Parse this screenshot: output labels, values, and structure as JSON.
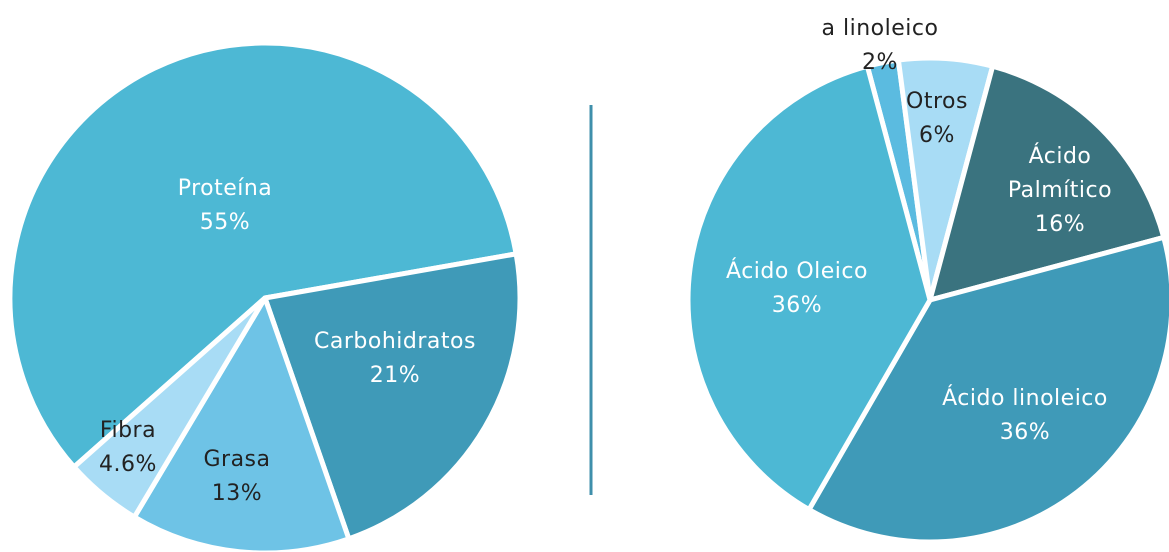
{
  "chart_data": [
    {
      "type": "pie",
      "categories": [
        "Proteína",
        "Carbohidratos",
        "Grasa",
        "Fibra"
      ],
      "values": [
        55,
        21,
        13,
        4.6
      ],
      "value_labels": [
        "55%",
        "21%",
        "13%",
        "4.6%"
      ],
      "colors": [
        "#4db8d4",
        "#3f9ab8",
        "#6ec3e6",
        "#a8dcf5"
      ]
    },
    {
      "type": "pie",
      "categories": [
        "a linoleico",
        "Otros",
        "Ácido Palmítico",
        "Ácido linoleico",
        "Ácido Oleico"
      ],
      "values": [
        2,
        6,
        16,
        36,
        36
      ],
      "value_labels": [
        "2%",
        "6%",
        "16%",
        "36%",
        "36%"
      ],
      "colors": [
        "#5bbbe0",
        "#a8dcf5",
        "#3a737f",
        "#3f9ab8",
        "#4db8d4"
      ]
    }
  ]
}
